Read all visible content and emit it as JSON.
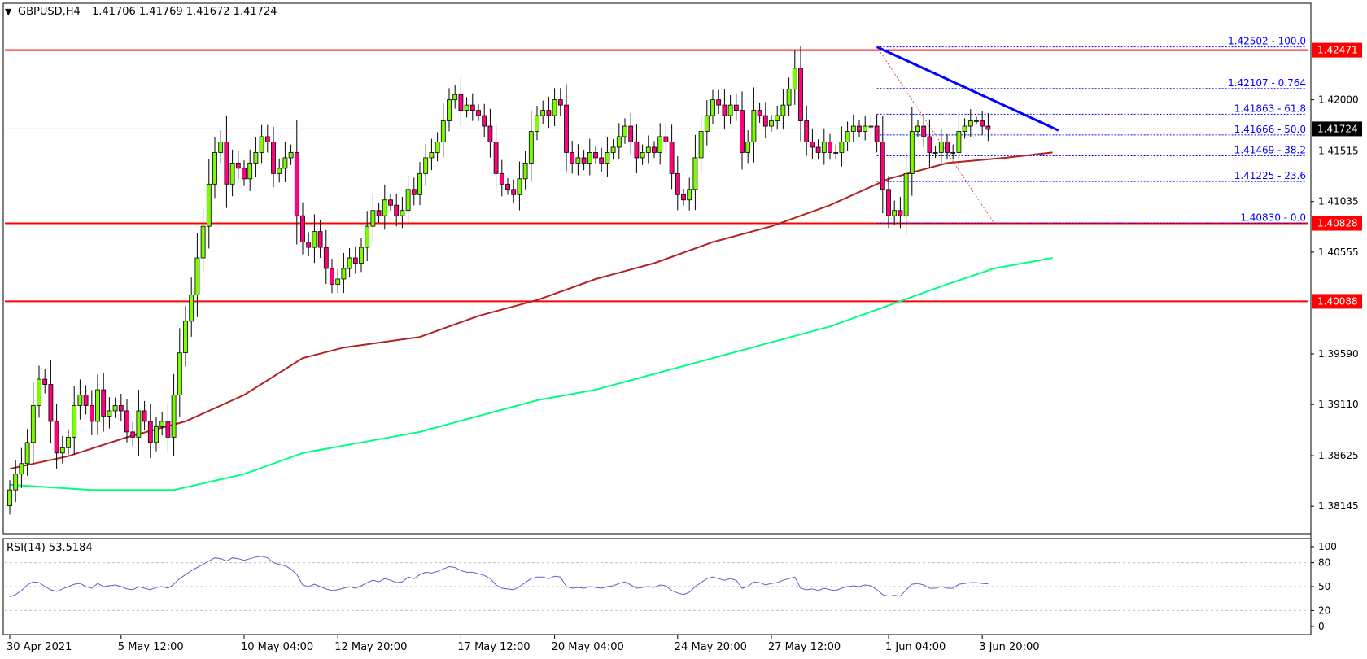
{
  "header": {
    "symbol": "GBPUSD,H4",
    "ohlc": "1.41706 1.41769 1.41672 1.41724"
  },
  "rsi": {
    "label": "RSI(14) 53.5184",
    "levels": [
      100,
      80,
      50,
      20,
      0
    ],
    "line_color": "#6a5acd"
  },
  "colors": {
    "bull": "#7cfc00",
    "bear": "#ff007f",
    "hline": "#ff0000",
    "trendline": "#0000ff",
    "ma_fast": "#b22222",
    "ma_slow": "#00ff7f",
    "fib": "#0000ff",
    "price_tag_bg": "#ff0000",
    "current_tag_bg": "#000000"
  },
  "chart_data": {
    "type": "candlestick",
    "timeframe": "H4",
    "ylim": [
      1.379,
      1.429
    ],
    "price_ticks": [
      1.42,
      1.41515,
      1.41035,
      1.40555,
      1.3959,
      1.3911,
      1.38625,
      1.38145
    ],
    "x_ticks": [
      {
        "label": "30 Apr 2021",
        "i": 0
      },
      {
        "label": "5 May 12:00",
        "i": 19
      },
      {
        "label": "10 May 04:00",
        "i": 40
      },
      {
        "label": "12 May 20:00",
        "i": 56
      },
      {
        "label": "17 May 12:00",
        "i": 77
      },
      {
        "label": "20 May 04:00",
        "i": 93
      },
      {
        "label": "24 May 20:00",
        "i": 114
      },
      {
        "label": "27 May 12:00",
        "i": 130
      },
      {
        "label": "1 Jun 04:00",
        "i": 150
      },
      {
        "label": "3 Jun 20:00",
        "i": 166
      }
    ],
    "closes": [
      1.383,
      1.3845,
      1.3855,
      1.3875,
      1.391,
      1.3935,
      1.393,
      1.3895,
      1.3865,
      1.387,
      1.388,
      1.391,
      1.392,
      1.391,
      1.3895,
      1.3925,
      1.39,
      1.3905,
      1.391,
      1.3905,
      1.3885,
      1.388,
      1.3905,
      1.3895,
      1.3875,
      1.389,
      1.3895,
      1.388,
      1.392,
      1.396,
      1.399,
      1.4015,
      1.405,
      1.408,
      1.412,
      1.415,
      1.416,
      1.412,
      1.414,
      1.4135,
      1.4125,
      1.414,
      1.415,
      1.4165,
      1.416,
      1.413,
      1.4135,
      1.4145,
      1.415,
      1.409,
      1.4065,
      1.406,
      1.4075,
      1.406,
      1.404,
      1.4025,
      1.403,
      1.404,
      1.405,
      1.4045,
      1.406,
      1.408,
      1.4095,
      1.409,
      1.4105,
      1.41,
      1.409,
      1.4095,
      1.4115,
      1.411,
      1.413,
      1.4145,
      1.415,
      1.416,
      1.418,
      1.42,
      1.4205,
      1.419,
      1.4195,
      1.419,
      1.4185,
      1.4175,
      1.416,
      1.413,
      1.412,
      1.4115,
      1.411,
      1.4125,
      1.414,
      1.417,
      1.4185,
      1.419,
      1.4185,
      1.42,
      1.4195,
      1.415,
      1.414,
      1.4145,
      1.414,
      1.415,
      1.4145,
      1.414,
      1.415,
      1.4155,
      1.4165,
      1.4175,
      1.416,
      1.4145,
      1.415,
      1.4155,
      1.415,
      1.4165,
      1.416,
      1.413,
      1.411,
      1.4105,
      1.4115,
      1.4145,
      1.417,
      1.4185,
      1.42,
      1.4195,
      1.4185,
      1.4195,
      1.419,
      1.415,
      1.416,
      1.419,
      1.4185,
      1.4175,
      1.418,
      1.4185,
      1.4195,
      1.421,
      1.423,
      1.418,
      1.416,
      1.4155,
      1.415,
      1.416,
      1.415,
      1.415,
      1.416,
      1.417,
      1.4175,
      1.417,
      1.4175,
      1.4175,
      1.416,
      1.4115,
      1.409,
      1.4095,
      1.409,
      1.413,
      1.417,
      1.4175,
      1.4165,
      1.415,
      1.415,
      1.416,
      1.415,
      1.415,
      1.417,
      1.4175,
      1.418,
      1.418,
      1.4175,
      1.4172
    ],
    "ma_fast": {
      "period": 100,
      "points": [
        [
          0,
          1.385
        ],
        [
          10,
          1.3862
        ],
        [
          20,
          1.388
        ],
        [
          30,
          1.3895
        ],
        [
          40,
          1.392
        ],
        [
          50,
          1.3955
        ],
        [
          57,
          1.3965
        ],
        [
          70,
          1.3975
        ],
        [
          80,
          1.3995
        ],
        [
          90,
          1.401
        ],
        [
          100,
          1.403
        ],
        [
          110,
          1.4045
        ],
        [
          120,
          1.4065
        ],
        [
          130,
          1.408
        ],
        [
          140,
          1.41
        ],
        [
          150,
          1.4125
        ],
        [
          160,
          1.414
        ],
        [
          170,
          1.4145
        ],
        [
          178,
          1.415
        ]
      ]
    },
    "ma_slow": {
      "period": 200,
      "points": [
        [
          0,
          1.3835
        ],
        [
          14,
          1.383
        ],
        [
          28,
          1.383
        ],
        [
          40,
          1.3845
        ],
        [
          50,
          1.3865
        ],
        [
          60,
          1.3875
        ],
        [
          70,
          1.3885
        ],
        [
          80,
          1.39
        ],
        [
          90,
          1.3915
        ],
        [
          100,
          1.3925
        ],
        [
          110,
          1.394
        ],
        [
          120,
          1.3955
        ],
        [
          130,
          1.397
        ],
        [
          140,
          1.3985
        ],
        [
          150,
          1.4005
        ],
        [
          160,
          1.4025
        ],
        [
          168,
          1.404
        ],
        [
          178,
          1.405
        ]
      ]
    },
    "horizontal_levels": [
      1.42471,
      1.40828,
      1.40088
    ],
    "trendline": [
      [
        148,
        1.42502
      ],
      [
        179,
        1.4171
      ]
    ],
    "fibonacci": {
      "high": 1.42502,
      "low": 1.4083,
      "from_i": 148,
      "to_i": 168,
      "levels": [
        {
          "price": 1.42502,
          "label": "1.42502 - 100.0"
        },
        {
          "price": 1.42107,
          "label": "1.42107 - 0.764"
        },
        {
          "price": 1.41863,
          "label": "1.41863 - 61.8"
        },
        {
          "price": 1.41666,
          "label": "1.41666 - 50.0"
        },
        {
          "price": 1.41469,
          "label": "1.41469 - 38.2"
        },
        {
          "price": 1.41225,
          "label": "1.41225 - 23.6"
        },
        {
          "price": 1.4083,
          "label": "1.40830 - 0.0"
        }
      ]
    },
    "price_tags": [
      "1.42471",
      "1.40828",
      "1.40088"
    ],
    "current_price": "1.41724",
    "rsi_values": [
      37,
      40,
      45,
      52,
      56,
      55,
      50,
      46,
      44,
      47,
      50,
      53,
      54,
      50,
      48,
      54,
      50,
      51,
      52,
      50,
      47,
      46,
      50,
      48,
      46,
      49,
      50,
      48,
      53,
      60,
      65,
      70,
      74,
      78,
      82,
      86,
      85,
      82,
      86,
      85,
      83,
      85,
      87,
      88,
      86,
      80,
      78,
      76,
      72,
      65,
      52,
      50,
      53,
      50,
      47,
      45,
      46,
      48,
      50,
      48,
      51,
      55,
      58,
      56,
      60,
      58,
      55,
      56,
      62,
      60,
      65,
      68,
      67,
      69,
      72,
      75,
      74,
      70,
      68,
      68,
      66,
      64,
      60,
      52,
      48,
      47,
      46,
      50,
      55,
      60,
      62,
      62,
      60,
      63,
      62,
      50,
      48,
      49,
      48,
      50,
      49,
      48,
      50,
      51,
      54,
      56,
      52,
      48,
      49,
      50,
      49,
      52,
      51,
      45,
      42,
      40,
      43,
      50,
      55,
      60,
      62,
      60,
      58,
      60,
      58,
      48,
      50,
      56,
      55,
      52,
      54,
      55,
      58,
      60,
      62,
      48,
      46,
      47,
      45,
      48,
      46,
      45,
      48,
      50,
      51,
      50,
      52,
      51,
      46,
      40,
      38,
      39,
      38,
      46,
      53,
      54,
      52,
      48,
      48,
      50,
      48,
      48,
      53,
      54,
      55,
      55,
      54,
      53.5
    ]
  }
}
